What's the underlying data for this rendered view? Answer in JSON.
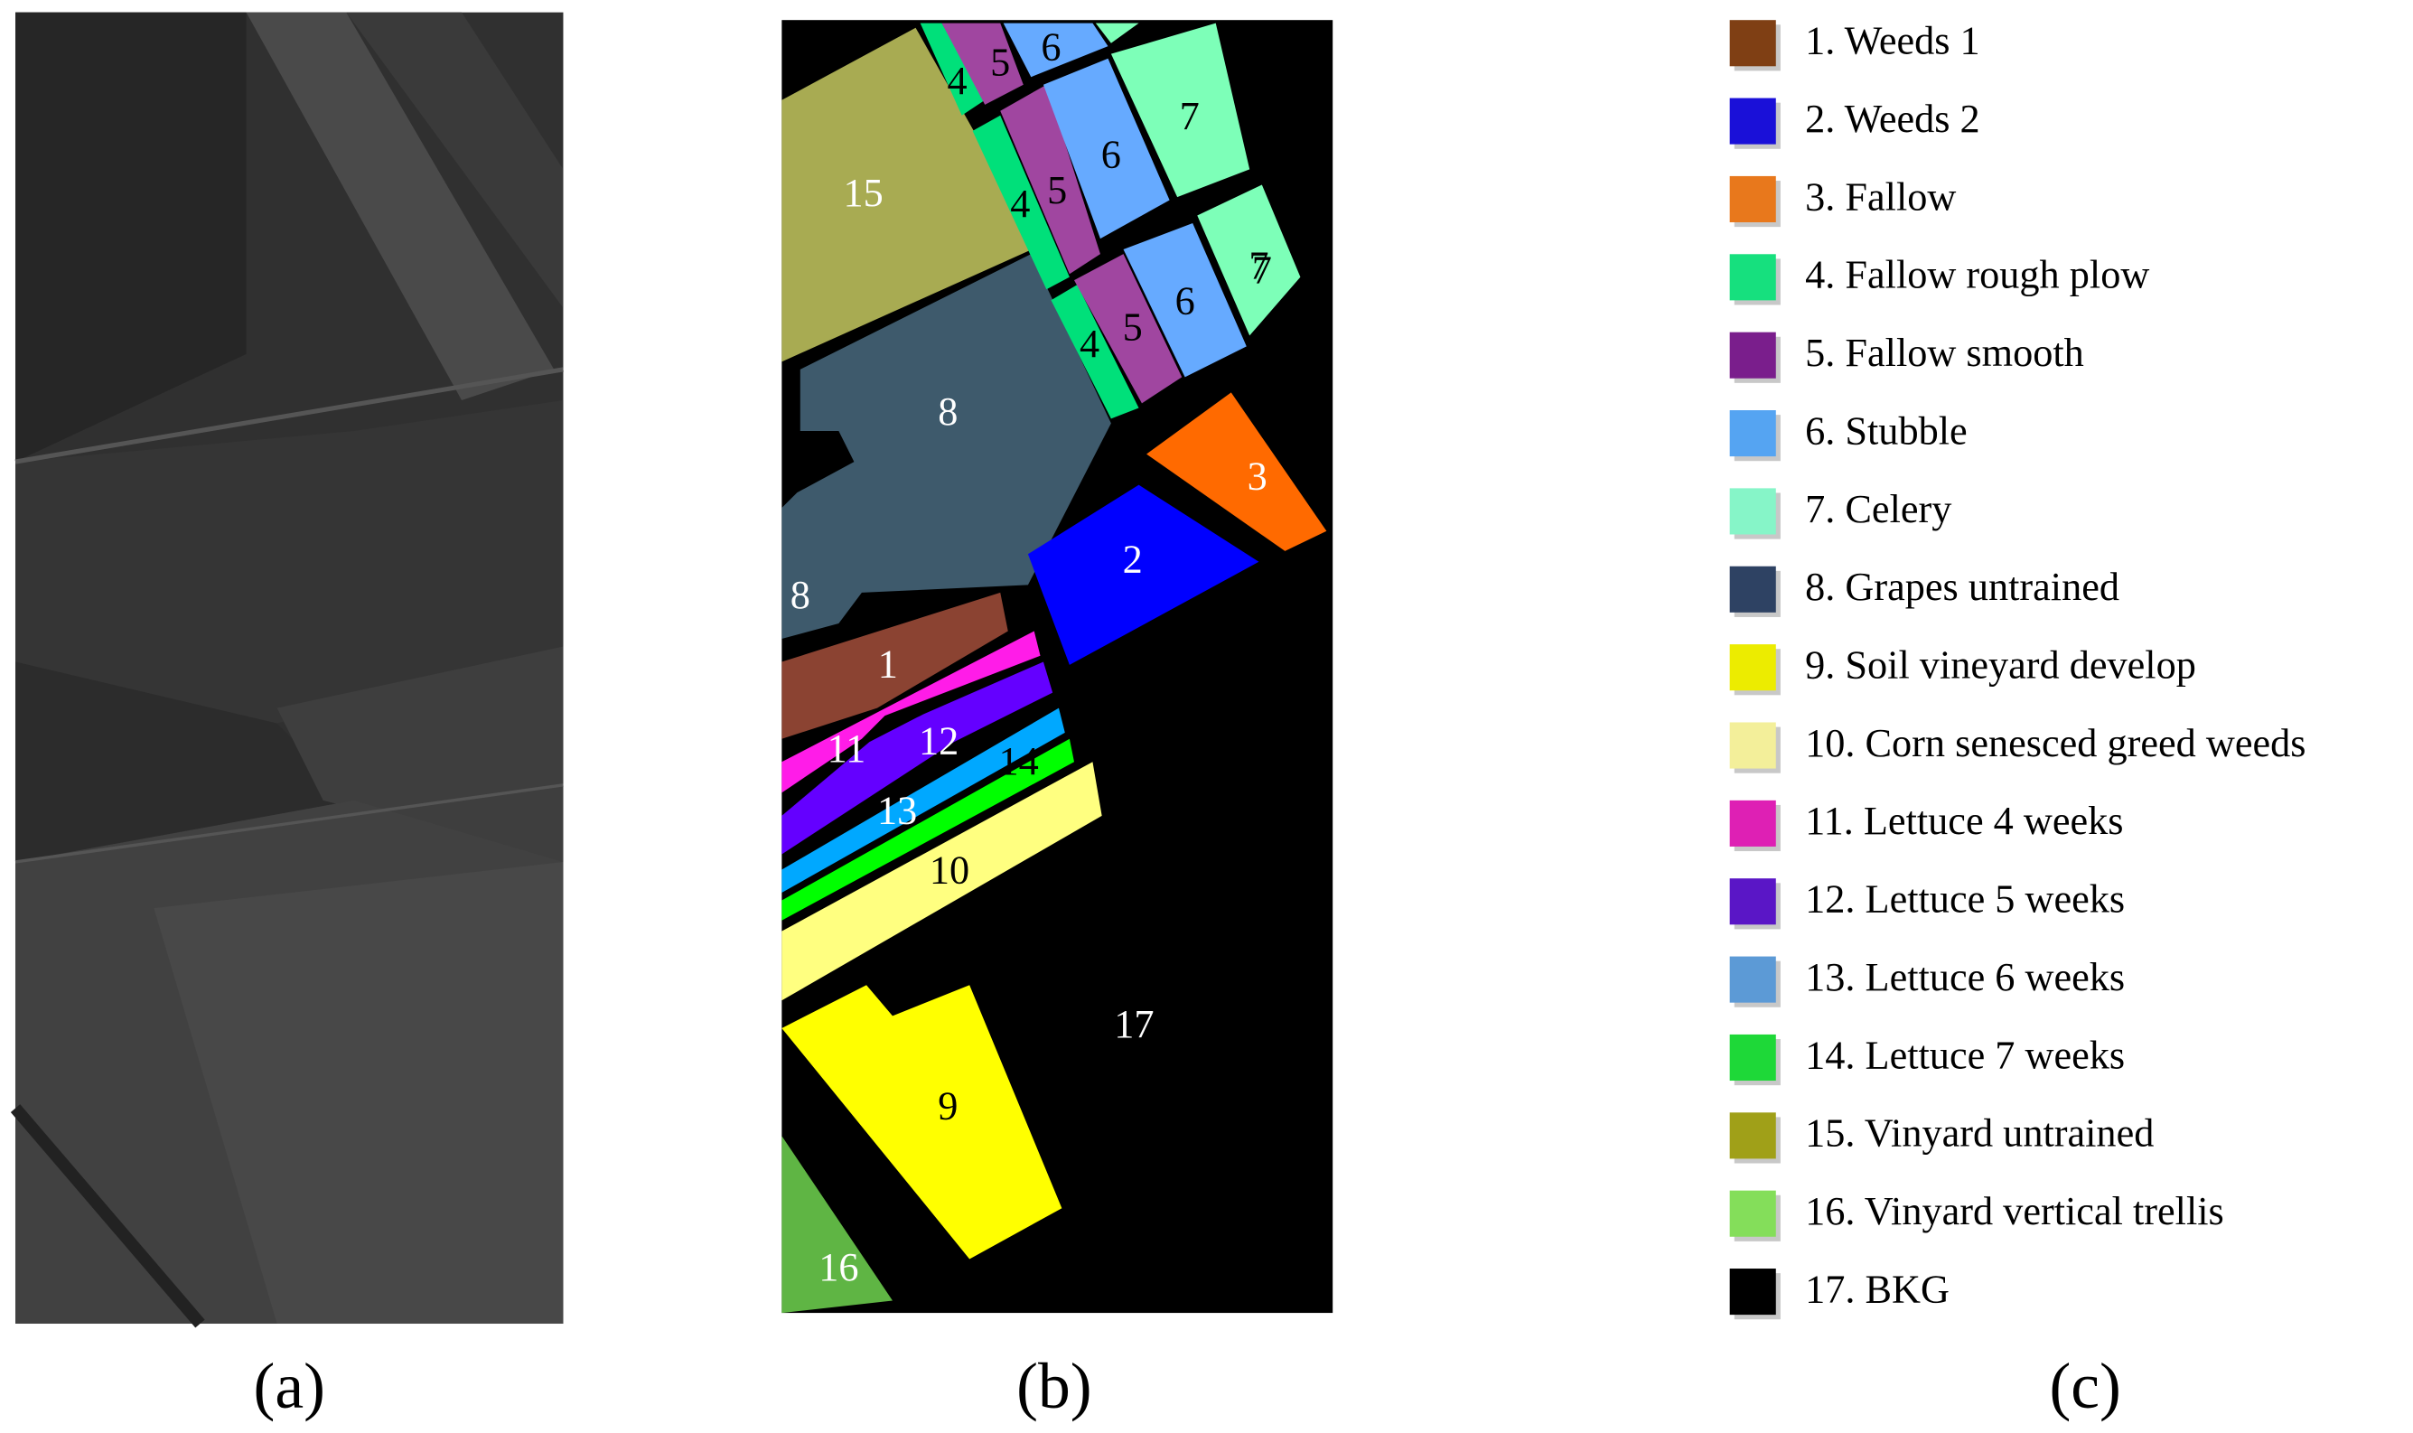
{
  "panels": {
    "a": "(a)",
    "b": "(b)",
    "c": "(c)"
  },
  "map": {
    "labels": [
      "15",
      "4",
      "5",
      "6",
      "7",
      "4",
      "5",
      "6",
      "7",
      "4",
      "5",
      "6",
      "7",
      "8",
      "8",
      "3",
      "2",
      "1",
      "11",
      "12",
      "14",
      "13",
      "10",
      "17",
      "9",
      "16"
    ]
  },
  "legend": [
    {
      "label": "1. Weeds 1",
      "color": "#7f3f14"
    },
    {
      "label": "2. Weeds 2",
      "color": "#1a10d8"
    },
    {
      "label": "3. Fallow",
      "color": "#e8781c"
    },
    {
      "label": "4. Fallow rough plow",
      "color": "#16e07e"
    },
    {
      "label": "5. Fallow smooth",
      "color": "#7a1e8c"
    },
    {
      "label": "6. Stubble",
      "color": "#55a4f2"
    },
    {
      "label": "7. Celery",
      "color": "#86f5c8"
    },
    {
      "label": "8. Grapes untrained",
      "color": "#2e4263"
    },
    {
      "label": "9. Soil vineyard develop",
      "color": "#ecec00"
    },
    {
      "label": "10. Corn senesced greed weeds",
      "color": "#f3ef9a"
    },
    {
      "label": "11. Lettuce 4 weeks",
      "color": "#de20b4"
    },
    {
      "label": "12. Lettuce 5 weeks",
      "color": "#5a16c6"
    },
    {
      "label": "13. Lettuce 6 weeks",
      "color": "#5c9ad6"
    },
    {
      "label": "14. Lettuce 7 weeks",
      "color": "#1ed838"
    },
    {
      "label": "15. Vinyard untrained",
      "color": "#a0a018"
    },
    {
      "label": "16. Vinyard vertical trellis",
      "color": "#84de5a"
    },
    {
      "label": "17. BKG",
      "color": "#000000"
    }
  ]
}
